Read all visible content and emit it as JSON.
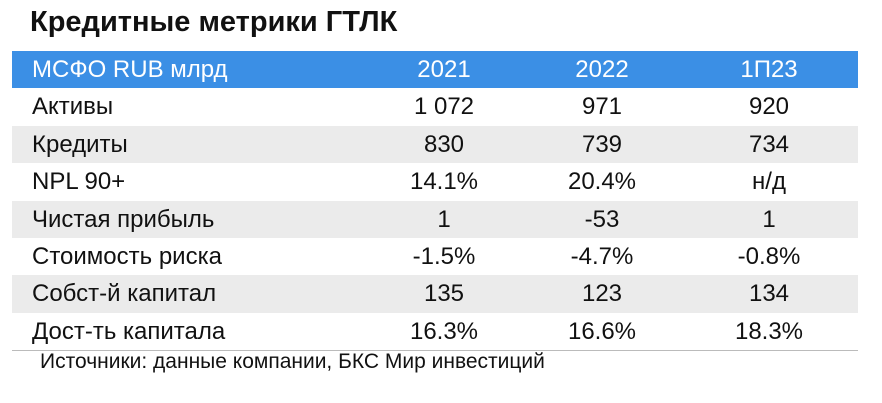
{
  "title": "Кредитные метрики ГТЛК",
  "table": {
    "header": [
      "МСФО RUB млрд",
      "2021",
      "2022",
      "1П23"
    ],
    "rows": [
      [
        "Активы",
        "1 072",
        "971",
        "920"
      ],
      [
        "Кредиты",
        "830",
        "739",
        "734"
      ],
      [
        "NPL 90+",
        "14.1%",
        "20.4%",
        "н/д"
      ],
      [
        "Чистая прибыль",
        "1",
        "-53",
        "1"
      ],
      [
        "Стоимость риска",
        "-1.5%",
        "-4.7%",
        "-0.8%"
      ],
      [
        "Собст-й капитал",
        "135",
        "123",
        "134"
      ],
      [
        "Дост-ть капитала",
        "16.3%",
        "16.6%",
        "18.3%"
      ]
    ]
  },
  "source": "Источники: данные компании, БКС Мир инвестиций"
}
